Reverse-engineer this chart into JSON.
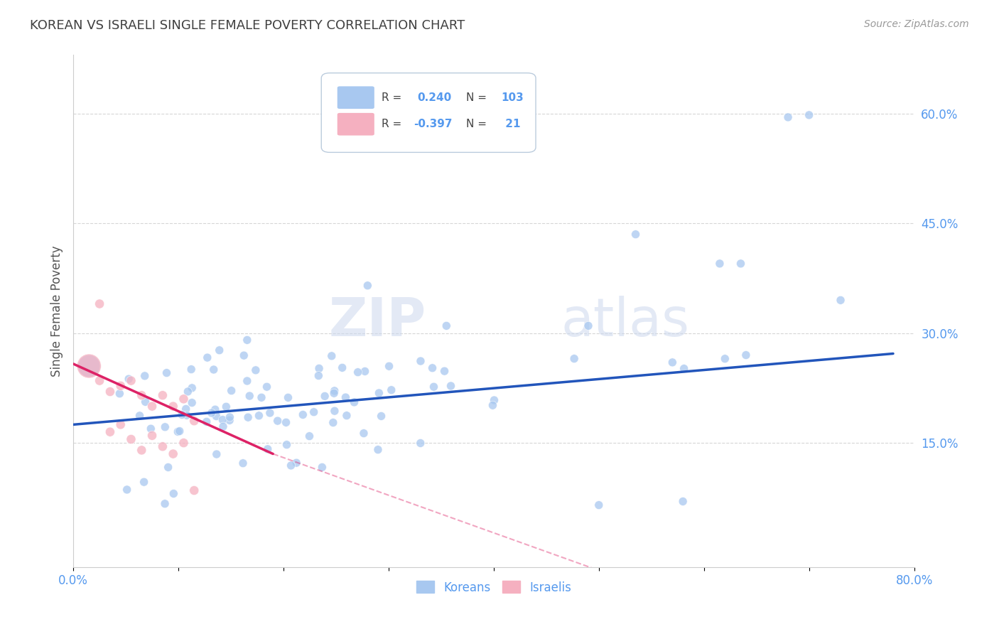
{
  "title": "KOREAN VS ISRAELI SINGLE FEMALE POVERTY CORRELATION CHART",
  "source": "Source: ZipAtlas.com",
  "ylabel": "Single Female Poverty",
  "watermark": "ZIPatlas",
  "xlim": [
    0.0,
    0.8
  ],
  "ylim": [
    -0.02,
    0.68
  ],
  "xtick_positions": [
    0.0,
    0.1,
    0.2,
    0.3,
    0.4,
    0.5,
    0.6,
    0.7,
    0.8
  ],
  "xticklabels": [
    "0.0%",
    "",
    "",
    "",
    "",
    "",
    "",
    "",
    "80.0%"
  ],
  "ytick_positions": [
    0.15,
    0.3,
    0.45,
    0.6
  ],
  "ytick_labels": [
    "15.0%",
    "30.0%",
    "45.0%",
    "60.0%"
  ],
  "korean_R": 0.24,
  "korean_N": 103,
  "israeli_R": -0.397,
  "israeli_N": 21,
  "korean_color": "#a8c8f0",
  "israeli_color": "#f5b0c0",
  "trendline_korean_color": "#2255bb",
  "trendline_israeli_color": "#dd2266",
  "legend_labels": [
    "Koreans",
    "Israelis"
  ],
  "background_color": "#ffffff",
  "grid_color": "#cccccc",
  "title_color": "#404040",
  "axis_label_color": "#555555",
  "tick_label_color": "#5599ee",
  "legend_text_color": "#5599ee",
  "source_color": "#999999"
}
